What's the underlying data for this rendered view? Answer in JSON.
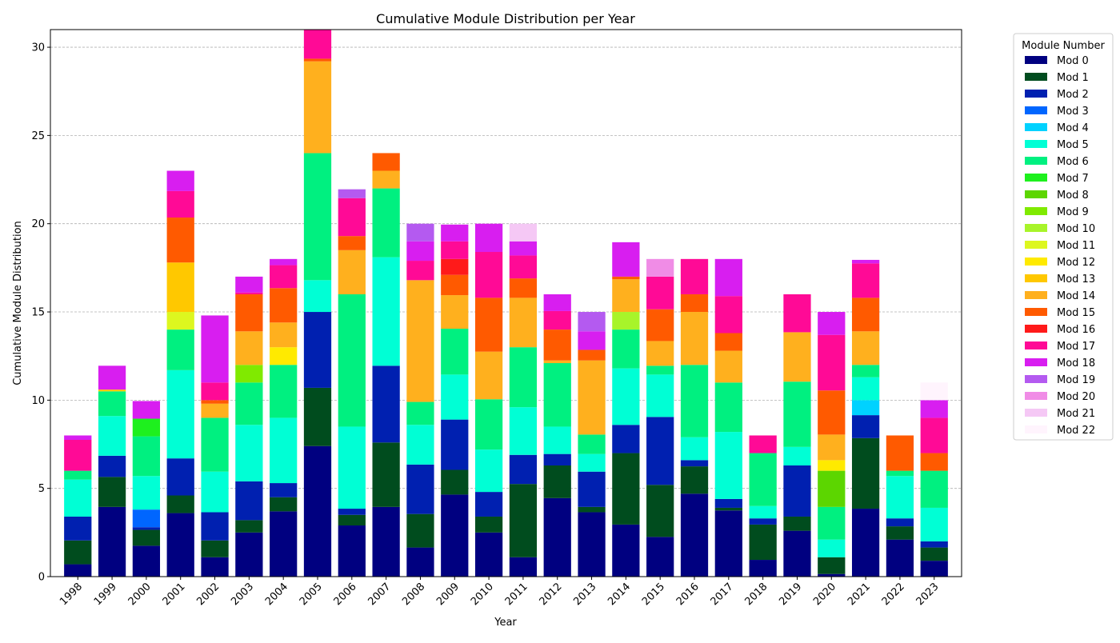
{
  "chart_data": {
    "type": "bar",
    "stacked": true,
    "title": "Cumulative Module Distribution per Year",
    "xlabel": "Year",
    "ylabel": "Cumulative Module Distribution",
    "ylim": [
      0,
      31
    ],
    "yticks": [
      0,
      5,
      10,
      15,
      20,
      25,
      30
    ],
    "grid": "y-dashed",
    "legend": {
      "title": "Module Number",
      "placement": "outside-right"
    },
    "categories": [
      "1998",
      "1999",
      "2000",
      "2001",
      "2002",
      "2003",
      "2004",
      "2005",
      "2006",
      "2007",
      "2008",
      "2009",
      "2010",
      "2011",
      "2012",
      "2013",
      "2014",
      "2015",
      "2016",
      "2017",
      "2018",
      "2019",
      "2020",
      "2021",
      "2022",
      "2023"
    ],
    "series": [
      {
        "name": "Mod 0",
        "color": "#000080",
        "values": [
          0.7,
          3.95,
          1.75,
          3.6,
          1.1,
          2.5,
          3.7,
          7.4,
          2.9,
          3.95,
          1.65,
          4.65,
          2.5,
          1.1,
          4.45,
          3.65,
          2.95,
          2.25,
          4.7,
          3.75,
          0.95,
          2.6,
          0.15,
          3.85,
          2.1,
          0.9
        ]
      },
      {
        "name": "Mod 1",
        "color": "#004c1e",
        "values": [
          1.35,
          1.7,
          0.9,
          1.0,
          0.95,
          0.7,
          0.8,
          3.3,
          0.6,
          3.65,
          1.9,
          1.4,
          0.9,
          4.15,
          1.85,
          0.3,
          4.05,
          2.95,
          1.55,
          0.15,
          2.0,
          0.8,
          0.95,
          4.0,
          0.75,
          0.75
        ]
      },
      {
        "name": "Mod 2",
        "color": "#0020b0",
        "values": [
          1.35,
          1.2,
          0.15,
          2.1,
          1.6,
          2.2,
          0.8,
          4.3,
          0.35,
          4.35,
          2.8,
          2.85,
          1.4,
          1.65,
          0.65,
          2.0,
          1.6,
          3.85,
          0.35,
          0.5,
          0.35,
          2.9,
          0,
          1.3,
          0.45,
          0.35
        ]
      },
      {
        "name": "Mod 3",
        "color": "#0066ff",
        "values": [
          0,
          0,
          1.0,
          0,
          0,
          0,
          0,
          0,
          0,
          0,
          0,
          0,
          0,
          0,
          0,
          0,
          0,
          0,
          0,
          0,
          0,
          0,
          0,
          0,
          0,
          0
        ]
      },
      {
        "name": "Mod 4",
        "color": "#00d2ff",
        "values": [
          0,
          0,
          0,
          0,
          0,
          0,
          0,
          0,
          0,
          0,
          0,
          0,
          0,
          0,
          0,
          0,
          0,
          0,
          0,
          0,
          0,
          0,
          0,
          0.85,
          0,
          0
        ]
      },
      {
        "name": "Mod 5",
        "color": "#00ffd5",
        "values": [
          2.1,
          2.25,
          1.9,
          5.0,
          2.3,
          3.2,
          3.7,
          1.8,
          4.65,
          6.15,
          2.25,
          2.55,
          2.4,
          2.7,
          1.55,
          1.0,
          3.2,
          2.4,
          1.3,
          3.8,
          0.7,
          1.05,
          1.0,
          1.3,
          2.4,
          1.9
        ]
      },
      {
        "name": "Mod 6",
        "color": "#00f080",
        "values": [
          0.5,
          1.4,
          2.25,
          2.3,
          3.05,
          2.4,
          3.0,
          7.2,
          7.5,
          3.9,
          1.3,
          2.6,
          2.85,
          3.4,
          3.6,
          1.1,
          2.2,
          0.5,
          4.1,
          2.8,
          3.0,
          3.7,
          1.85,
          0.7,
          0.3,
          2.1
        ]
      },
      {
        "name": "Mod 7",
        "color": "#1ef01e",
        "values": [
          0,
          0,
          1.0,
          0,
          0,
          0,
          0,
          0,
          0,
          0,
          0,
          0,
          0,
          0,
          0,
          0,
          0,
          0,
          0,
          0,
          0,
          0,
          0,
          0,
          0,
          0
        ]
      },
      {
        "name": "Mod 8",
        "color": "#5cd600",
        "values": [
          0,
          0,
          0,
          0,
          0,
          0,
          0,
          0,
          0,
          0,
          0,
          0,
          0,
          0,
          0,
          0,
          0,
          0,
          0,
          0,
          0,
          0,
          2.05,
          0,
          0,
          0
        ]
      },
      {
        "name": "Mod 9",
        "color": "#80ea00",
        "values": [
          0,
          0,
          0,
          0,
          0,
          1.0,
          0,
          0,
          0,
          0,
          0,
          0,
          0,
          0,
          0,
          0,
          0,
          0,
          0,
          0,
          0,
          0,
          0,
          0,
          0,
          0
        ]
      },
      {
        "name": "Mod 10",
        "color": "#a8f42a",
        "values": [
          0,
          0,
          0,
          0,
          0,
          0,
          0,
          0,
          0,
          0,
          0,
          0,
          0,
          0,
          0,
          0,
          1.0,
          0,
          0,
          0,
          0,
          0,
          0,
          0,
          0,
          0
        ]
      },
      {
        "name": "Mod 11",
        "color": "#ddf71f",
        "values": [
          0,
          0,
          0,
          1.0,
          0,
          0,
          0,
          0,
          0,
          0,
          0,
          0,
          0,
          0,
          0,
          0,
          0,
          0,
          0,
          0,
          0,
          0,
          0,
          0,
          0,
          0
        ]
      },
      {
        "name": "Mod 12",
        "color": "#ffea00",
        "values": [
          0,
          0,
          0,
          0,
          0,
          0,
          1.0,
          0,
          0,
          0,
          0,
          0,
          0,
          0,
          0,
          0,
          0,
          0,
          0,
          0,
          0,
          0,
          0.6,
          0,
          0,
          0
        ]
      },
      {
        "name": "Mod 13",
        "color": "#ffc800",
        "values": [
          0,
          0.1,
          0,
          2.8,
          0,
          0,
          0,
          0,
          0,
          0,
          0,
          0,
          0,
          0,
          0,
          0,
          0,
          0,
          0,
          0,
          0,
          0,
          0,
          0,
          0,
          0
        ]
      },
      {
        "name": "Mod 14",
        "color": "#ffb01e",
        "values": [
          0,
          0,
          0,
          0,
          0.8,
          1.9,
          1.4,
          5.2,
          2.5,
          1.0,
          6.9,
          1.9,
          2.7,
          2.8,
          0.15,
          4.2,
          1.85,
          1.4,
          3.0,
          1.8,
          0,
          2.8,
          1.45,
          1.9,
          0,
          0
        ]
      },
      {
        "name": "Mod 15",
        "color": "#ff5a00",
        "values": [
          0,
          0,
          0,
          2.55,
          0.2,
          2.1,
          1.95,
          0.15,
          0.8,
          1.0,
          0,
          1.15,
          3.05,
          1.1,
          1.75,
          0.6,
          0.15,
          1.8,
          1.0,
          1.0,
          0,
          0,
          2.5,
          1.9,
          2.0,
          1.0
        ]
      },
      {
        "name": "Mod 16",
        "color": "#ff1a1a",
        "values": [
          0,
          0,
          0,
          0,
          0,
          0,
          0,
          0,
          0,
          0,
          0,
          0.9,
          0,
          0,
          0,
          0,
          0,
          0,
          0,
          0,
          0,
          0,
          0,
          0,
          0,
          0
        ]
      },
      {
        "name": "Mod 17",
        "color": "#ff0a96",
        "values": [
          1.75,
          0,
          0,
          1.5,
          1.0,
          0.1,
          1.3,
          1.65,
          2.15,
          0,
          1.1,
          1.0,
          2.6,
          1.3,
          1.05,
          0,
          0,
          1.85,
          2.0,
          2.1,
          1.0,
          2.15,
          3.15,
          1.95,
          0,
          2.0
        ]
      },
      {
        "name": "Mod 18",
        "color": "#d81ef0",
        "values": [
          0.25,
          1.35,
          1.0,
          1.15,
          3.8,
          0.9,
          0.35,
          0,
          0,
          0,
          1.1,
          0.95,
          1.6,
          0.8,
          0.95,
          1.05,
          1.95,
          0,
          0,
          2.1,
          0,
          0,
          1.3,
          0.2,
          0,
          1.0
        ]
      },
      {
        "name": "Mod 19",
        "color": "#b45af0",
        "values": [
          0,
          0,
          0,
          0,
          0,
          0,
          0,
          0,
          0.5,
          0,
          1.0,
          0,
          0,
          0,
          0,
          1.1,
          0,
          0,
          0,
          0,
          0,
          0,
          0,
          0,
          0,
          0
        ]
      },
      {
        "name": "Mod 20",
        "color": "#f08ce6",
        "values": [
          0,
          0,
          0,
          0,
          0,
          0,
          0,
          0,
          0,
          0,
          0,
          0,
          0,
          0,
          0,
          0,
          0,
          1.0,
          0,
          0,
          0,
          0,
          0,
          0,
          0,
          0
        ]
      },
      {
        "name": "Mod 21",
        "color": "#f5c8f5",
        "values": [
          0,
          0,
          0,
          0,
          0,
          0,
          0,
          0,
          0,
          0,
          0,
          0,
          0,
          1.0,
          0,
          0,
          0,
          0,
          0,
          0,
          0,
          0,
          0,
          0,
          0,
          0
        ]
      },
      {
        "name": "Mod 22",
        "color": "#fff4fd",
        "values": [
          0,
          0,
          0,
          0,
          0,
          0,
          0,
          0,
          0,
          0,
          0,
          0,
          0,
          0,
          0,
          0,
          0,
          0,
          0,
          0,
          0,
          0,
          0,
          0,
          0,
          1.0
        ]
      }
    ]
  }
}
